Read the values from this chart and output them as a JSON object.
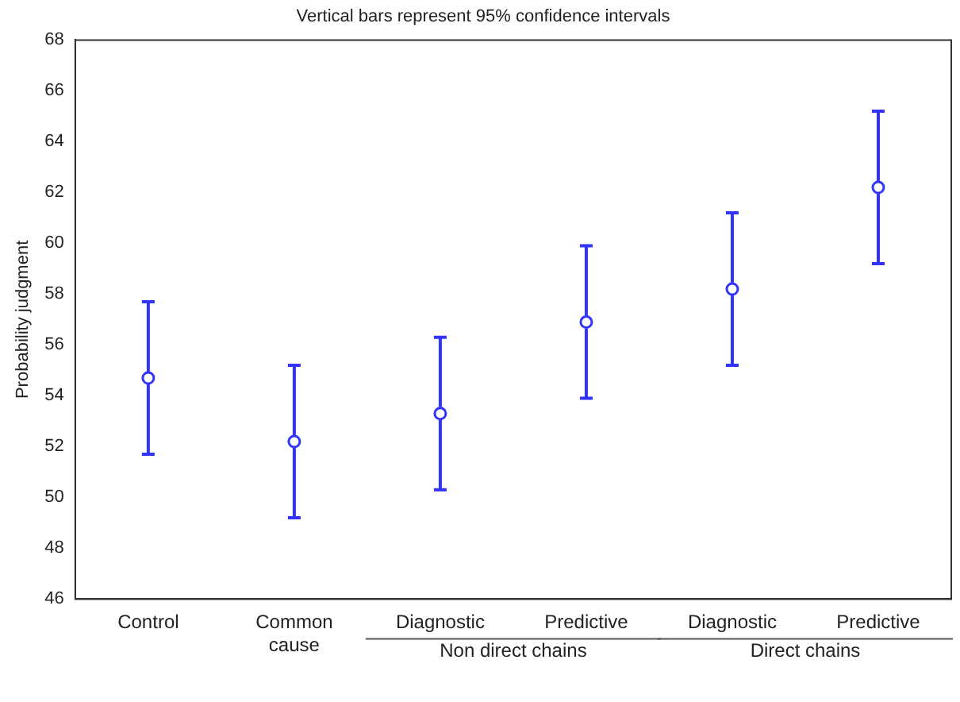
{
  "chart_data": {
    "type": "scatter",
    "title": "Vertical bars represent 95% confidence intervals",
    "ylabel": "Probability judgment",
    "categories": [
      "Control",
      "Common\ncause",
      "Diagnostic",
      "Predictive",
      "Diagnostic",
      "Predictive"
    ],
    "values": [
      54.7,
      52.2,
      53.3,
      56.9,
      58.2,
      62.2
    ],
    "errors": [
      3.0,
      3.0,
      3.0,
      3.0,
      3.0,
      3.0
    ],
    "color": "#3333ff",
    "marker": "circle",
    "grid": false,
    "legend": false,
    "ylim": [
      46,
      68
    ],
    "yticks": [
      46,
      48,
      50,
      52,
      54,
      56,
      58,
      60,
      62,
      64,
      66,
      68
    ],
    "annotations": [
      "Non direct chains",
      "Direct chains"
    ]
  }
}
